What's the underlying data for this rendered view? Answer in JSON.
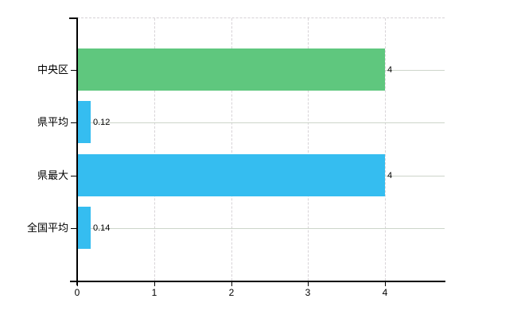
{
  "chart_data": {
    "type": "bar",
    "orientation": "horizontal",
    "title": "",
    "xlabel": "",
    "ylabel": "",
    "categories": [
      "中央区",
      "県平均",
      "県最大",
      "全国平均"
    ],
    "values": [
      4,
      0.12,
      4,
      0.14
    ],
    "data_labels": [
      "4",
      "0.12",
      "4",
      "0.14"
    ],
    "series_colors": [
      "#5fc77e",
      "#35bdf0",
      "#35bdf0",
      "#35bdf0"
    ],
    "x_ticks": [
      "0",
      "1",
      "2",
      "3",
      "4"
    ],
    "x_tick_values": [
      0,
      1,
      2,
      3,
      4
    ],
    "xlim": [
      0,
      4.79
    ],
    "grid": "on",
    "legend": "none"
  },
  "colors": {
    "bar_green": "#5fc77e",
    "bar_blue": "#35bdf0",
    "axis": "#000000",
    "grid_vertical": "#d7d3d7",
    "grid_horizontal": "#cdd5ca",
    "label_text": "#000000",
    "background": "#ffffff"
  }
}
